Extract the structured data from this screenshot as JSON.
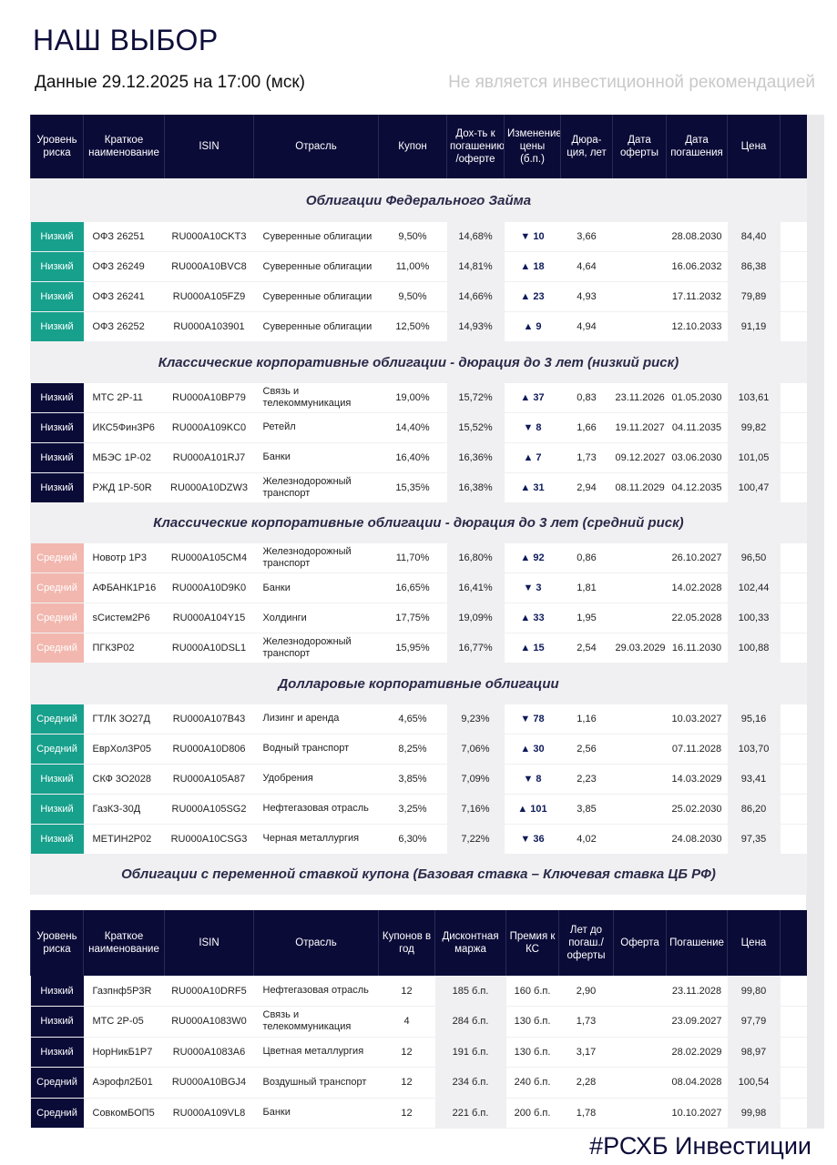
{
  "title": "НАШ ВЫБОР",
  "date_line": "Данные 29.12.2025 на 17:00 (мск)",
  "disclaimer": "Не является инвестиционной рекомендацией",
  "footer": "#РСХБ Инвестиции",
  "colors": {
    "navy": "#0b0b38",
    "teal": "#17a08c",
    "pink": "#f2b7ae"
  },
  "table1": {
    "headers": [
      "Уровень риска",
      "Краткое наименование",
      "ISIN",
      "Отрасль",
      "Купон",
      "Дох-ть к погашению /оферте",
      "Изменение цены (б.п.)",
      "Дюра-ция, лет",
      "Дата оферты",
      "Дата погашения",
      "Цена",
      ""
    ],
    "sections": [
      {
        "title": "Облигации Федерального Займа",
        "rows": [
          {
            "risk": "Низкий",
            "style": "teal",
            "name": "ОФЗ 26251",
            "isin": "RU000A10CKT3",
            "sector": "Суверенные облигации",
            "coupon": "9,50%",
            "ytm": "14,68%",
            "dir": "▼",
            "chg": "10",
            "dur": "3,66",
            "offer": "",
            "mat": "28.08.2030",
            "price": "84,40"
          },
          {
            "risk": "Низкий",
            "style": "teal",
            "name": "ОФЗ 26249",
            "isin": "RU000A10BVC8",
            "sector": "Суверенные облигации",
            "coupon": "11,00%",
            "ytm": "14,81%",
            "dir": "▲",
            "chg": "18",
            "dur": "4,64",
            "offer": "",
            "mat": "16.06.2032",
            "price": "86,38"
          },
          {
            "risk": "Низкий",
            "style": "teal",
            "name": "ОФЗ 26241",
            "isin": "RU000A105FZ9",
            "sector": "Суверенные облигации",
            "coupon": "9,50%",
            "ytm": "14,66%",
            "dir": "▲",
            "chg": "23",
            "dur": "4,93",
            "offer": "",
            "mat": "17.11.2032",
            "price": "79,89"
          },
          {
            "risk": "Низкий",
            "style": "teal",
            "name": "ОФЗ 26252",
            "isin": "RU000A103901",
            "sector": "Суверенные облигации",
            "coupon": "12,50%",
            "ytm": "14,93%",
            "dir": "▲",
            "chg": "9",
            "dur": "4,94",
            "offer": "",
            "mat": "12.10.2033",
            "price": "91,19"
          }
        ]
      },
      {
        "title": "Классические корпоративные облигации - дюрация до 3 лет (низкий риск)",
        "rows": [
          {
            "risk": "Низкий",
            "style": "navy",
            "name": "МТС 2Р-11",
            "isin": "RU000A10BP79",
            "sector": "Связь и телекоммуникация",
            "coupon": "19,00%",
            "ytm": "15,72%",
            "dir": "▲",
            "chg": "37",
            "dur": "0,83",
            "offer": "23.11.2026",
            "mat": "01.05.2030",
            "price": "103,61"
          },
          {
            "risk": "Низкий",
            "style": "navy",
            "name": "ИКС5Фин3Р6",
            "isin": "RU000A109KC0",
            "sector": "Ретейл",
            "coupon": "14,40%",
            "ytm": "15,52%",
            "dir": "▼",
            "chg": "8",
            "dur": "1,66",
            "offer": "19.11.2027",
            "mat": "04.11.2035",
            "price": "99,82"
          },
          {
            "risk": "Низкий",
            "style": "navy",
            "name": "МБЭС 1Р-02",
            "isin": "RU000A101RJ7",
            "sector": "Банки",
            "coupon": "16,40%",
            "ytm": "16,36%",
            "dir": "▲",
            "chg": "7",
            "dur": "1,73",
            "offer": "09.12.2027",
            "mat": "03.06.2030",
            "price": "101,05"
          },
          {
            "risk": "Низкий",
            "style": "navy",
            "name": "РЖД 1Р-50R",
            "isin": "RU000A10DZW3",
            "sector": "Железнодорожный транспорт",
            "coupon": "15,35%",
            "ytm": "16,38%",
            "dir": "▲",
            "chg": "31",
            "dur": "2,94",
            "offer": "08.11.2029",
            "mat": "04.12.2035",
            "price": "100,47"
          }
        ]
      },
      {
        "title": "Классические корпоративные облигации - дюрация до 3 лет (средний риск)",
        "rows": [
          {
            "risk": "Средний",
            "style": "pink",
            "name": "Новотр 1Р3",
            "isin": "RU000A105CM4",
            "sector": "Железнодорожный транспорт",
            "coupon": "11,70%",
            "ytm": "16,80%",
            "dir": "▲",
            "chg": "92",
            "dur": "0,86",
            "offer": "",
            "mat": "26.10.2027",
            "price": "96,50"
          },
          {
            "risk": "Средний",
            "style": "pink",
            "name": "АФБАНК1Р16",
            "isin": "RU000A10D9K0",
            "sector": "Банки",
            "coupon": "16,65%",
            "ytm": "16,41%",
            "dir": "▼",
            "chg": "3",
            "dur": "1,81",
            "offer": "",
            "mat": "14.02.2028",
            "price": "102,44"
          },
          {
            "risk": "Средний",
            "style": "pink",
            "name": "sСистем2Р6",
            "isin": "RU000A104Y15",
            "sector": "Холдинги",
            "coupon": "17,75%",
            "ytm": "19,09%",
            "dir": "▲",
            "chg": "33",
            "dur": "1,95",
            "offer": "",
            "mat": "22.05.2028",
            "price": "100,33"
          },
          {
            "risk": "Средний",
            "style": "pink",
            "name": "ПГК3Р02",
            "isin": "RU000A10DSL1",
            "sector": "Железнодорожный транспорт",
            "coupon": "15,95%",
            "ytm": "16,77%",
            "dir": "▲",
            "chg": "15",
            "dur": "2,54",
            "offer": "29.03.2029",
            "mat": "16.11.2030",
            "price": "100,88"
          }
        ]
      },
      {
        "title": "Долларовые корпоративные облигации",
        "rows": [
          {
            "risk": "Средний",
            "style": "teal",
            "name": "ГТЛК 3О27Д",
            "isin": "RU000A107B43",
            "sector": "Лизинг и аренда",
            "coupon": "4,65%",
            "ytm": "9,23%",
            "dir": "▼",
            "chg": "78",
            "dur": "1,16",
            "offer": "",
            "mat": "10.03.2027",
            "price": "95,16"
          },
          {
            "risk": "Средний",
            "style": "teal",
            "name": "ЕврХол3Р05",
            "isin": "RU000A10D806",
            "sector": "Водный транспорт",
            "coupon": "8,25%",
            "ytm": "7,06%",
            "dir": "▲",
            "chg": "30",
            "dur": "2,56",
            "offer": "",
            "mat": "07.11.2028",
            "price": "103,70"
          },
          {
            "risk": "Низкий",
            "style": "teal",
            "name": "СКФ 3О2028",
            "isin": "RU000A105A87",
            "sector": "Удобрения",
            "coupon": "3,85%",
            "ytm": "7,09%",
            "dir": "▼",
            "chg": "8",
            "dur": "2,23",
            "offer": "",
            "mat": "14.03.2029",
            "price": "93,41"
          },
          {
            "risk": "Низкий",
            "style": "teal",
            "name": "ГазКЗ-30Д",
            "isin": "RU000A105SG2",
            "sector": "Нефтегазовая отрасль",
            "coupon": "3,25%",
            "ytm": "7,16%",
            "dir": "▲",
            "chg": "101",
            "dur": "3,85",
            "offer": "",
            "mat": "25.02.2030",
            "price": "86,20"
          },
          {
            "risk": "Низкий",
            "style": "teal",
            "name": "МЕТИН2Р02",
            "isin": "RU000A10CSG3",
            "sector": "Черная металлургия",
            "coupon": "6,30%",
            "ytm": "7,22%",
            "dir": "▼",
            "chg": "36",
            "dur": "4,02",
            "offer": "",
            "mat": "24.08.2030",
            "price": "97,35"
          }
        ]
      },
      {
        "title": "Облигации с переменной ставкой купона (Базовая ставка – Ключевая ставка ЦБ РФ)",
        "rows": []
      }
    ]
  },
  "table2": {
    "headers": [
      "Уровень риска",
      "Краткое наименование",
      "ISIN",
      "Отрасль",
      "Купонов в год",
      "Дисконтная маржа",
      "Премия к КС",
      "Лет до погаш./ оферты",
      "Оферта",
      "Погашение",
      "Цена",
      ""
    ],
    "rows": [
      {
        "risk": "Низкий",
        "name": "Газпнф5Р3R",
        "isin": "RU000A10DRF5",
        "sector": "Нефтегазовая отрасль",
        "cpy": "12",
        "margin": "185 б.п.",
        "prem": "160 б.п.",
        "years": "2,90",
        "offer": "",
        "mat": "23.11.2028",
        "price": "99,80"
      },
      {
        "risk": "Низкий",
        "name": "МТС 2Р-05",
        "isin": "RU000A1083W0",
        "sector": "Связь и телекоммуникация",
        "cpy": "4",
        "margin": "284 б.п.",
        "prem": "130 б.п.",
        "years": "1,73",
        "offer": "",
        "mat": "23.09.2027",
        "price": "97,79"
      },
      {
        "risk": "Низкий",
        "name": "НорНикБ1Р7",
        "isin": "RU000A1083A6",
        "sector": "Цветная металлургия",
        "cpy": "12",
        "margin": "191 б.п.",
        "prem": "130 б.п.",
        "years": "3,17",
        "offer": "",
        "mat": "28.02.2029",
        "price": "98,97"
      },
      {
        "risk": "Средний",
        "name": "Аэрофл2Б01",
        "isin": "RU000A10BGJ4",
        "sector": "Воздушный транспорт",
        "cpy": "12",
        "margin": "234 б.п.",
        "prem": "240 б.п.",
        "years": "2,28",
        "offer": "",
        "mat": "08.04.2028",
        "price": "100,54"
      },
      {
        "risk": "Средний",
        "name": "СовкомБОП5",
        "isin": "RU000A109VL8",
        "sector": "Банки",
        "cpy": "12",
        "margin": "221 б.п.",
        "prem": "200 б.п.",
        "years": "1,78",
        "offer": "",
        "mat": "10.10.2027",
        "price": "99,98"
      }
    ]
  }
}
